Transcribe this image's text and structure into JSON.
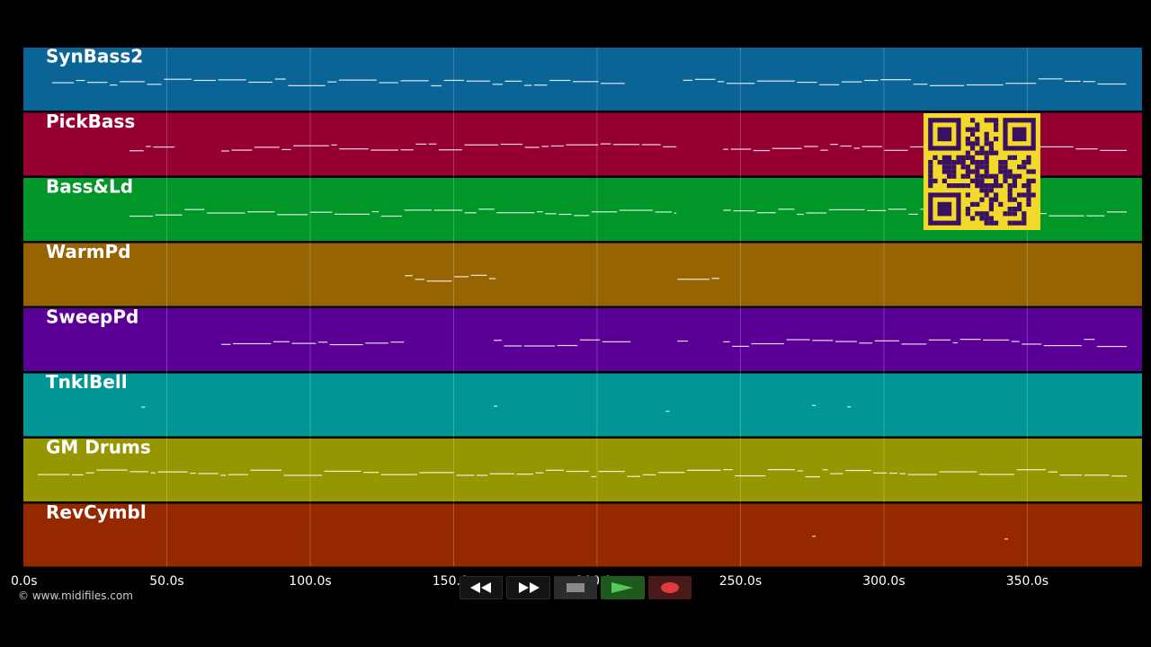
{
  "timeline": {
    "max_seconds": 390,
    "tick_labels": [
      "0.0s",
      "50.0s",
      "100.0s",
      "150.0s",
      "200.0s",
      "250.0s",
      "300.0s",
      "350.0s"
    ],
    "tick_values": [
      0,
      50,
      100,
      150,
      200,
      250,
      300,
      350
    ]
  },
  "tracks": [
    {
      "name": "SynBass2",
      "color": "#0a6496"
    },
    {
      "name": "PickBass",
      "color": "#960030"
    },
    {
      "name": "Bass&Ld",
      "color": "#009628"
    },
    {
      "name": "WarmPd",
      "color": "#966400"
    },
    {
      "name": "SweepPd",
      "color": "#5a0096"
    },
    {
      "name": "TnklBell",
      "color": "#009696"
    },
    {
      "name": "GM Drums",
      "color": "#969600"
    },
    {
      "name": "RevCymbl",
      "color": "#962800"
    }
  ],
  "copyright": "© www.midifiles.com",
  "transport": {
    "rewind": "rewind-icon",
    "fast_forward": "fast-forward-icon",
    "stop": "stop-icon",
    "play": "play-icon",
    "record": "record-icon"
  },
  "qr_code": "qr-code"
}
